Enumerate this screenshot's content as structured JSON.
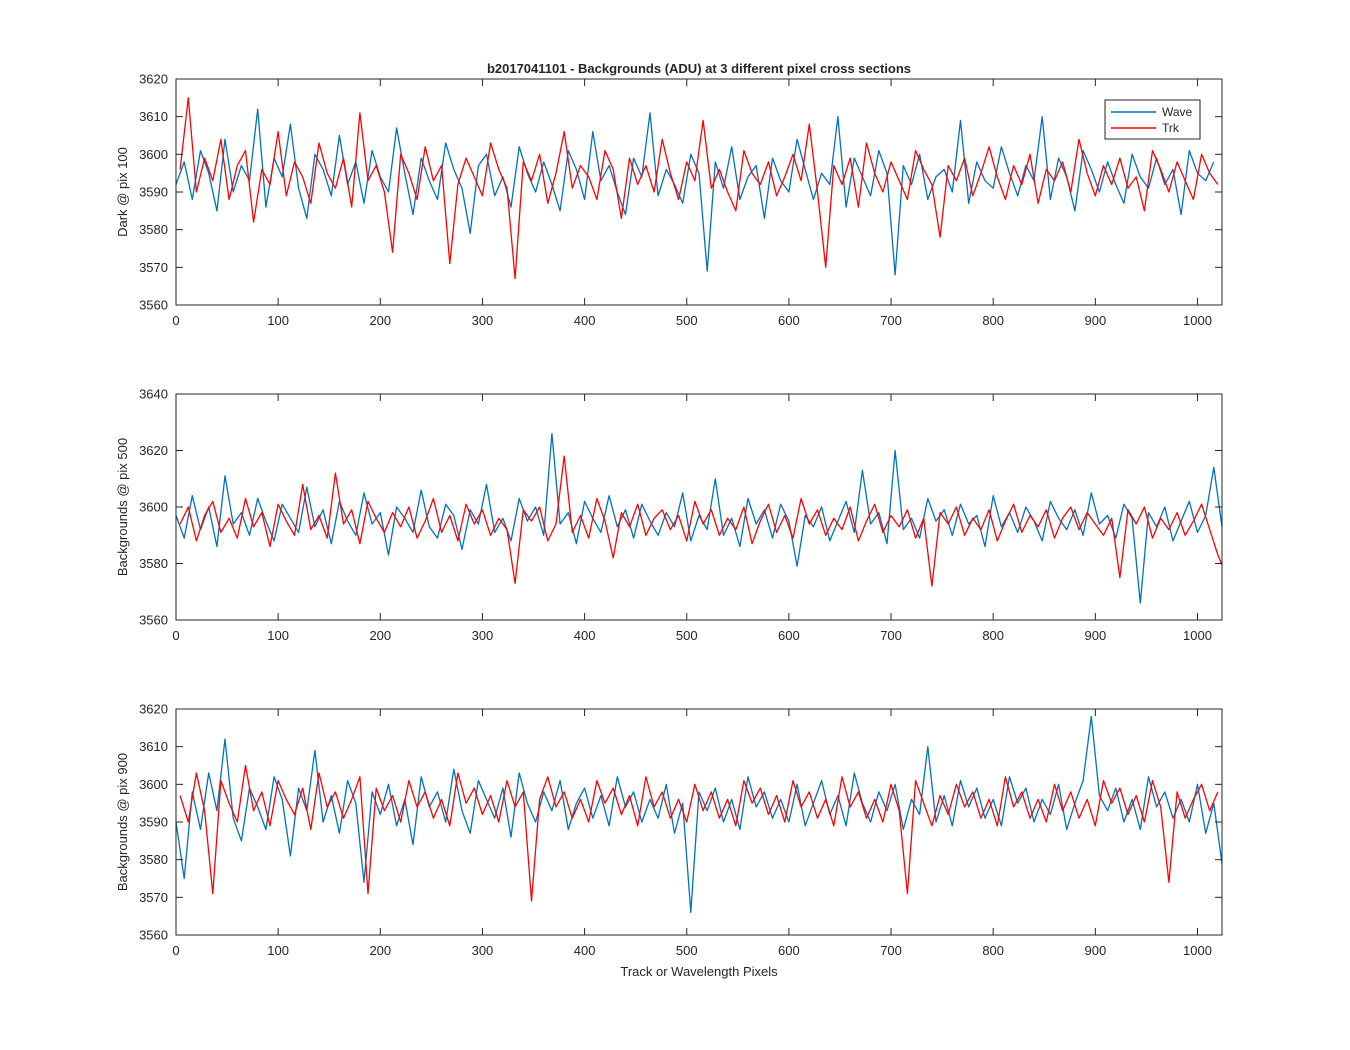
{
  "figure": {
    "title": "b2017041101 - Backgrounds (ADU) at 3 different pixel cross sections",
    "xlabel": "Track or Wavelength Pixels"
  },
  "colors": {
    "wave": "#0072BD",
    "trk": "#FF0000",
    "axis": "#262626",
    "background": "#FFFFFF"
  },
  "legend": {
    "placement": "top-right",
    "entries": [
      "Wave",
      "Trk"
    ]
  },
  "chart_data": [
    {
      "type": "line",
      "ylabel": "Dark @ pix 100",
      "xlim": [
        0,
        1024
      ],
      "ylim": [
        3560,
        3620
      ],
      "xticks": [
        0,
        100,
        200,
        300,
        400,
        500,
        600,
        700,
        800,
        900,
        1000
      ],
      "yticks": [
        3560,
        3570,
        3580,
        3590,
        3600,
        3610,
        3620
      ],
      "series": [
        {
          "name": "Wave",
          "color": "#0072BD",
          "x_start": 0,
          "x_step": 8,
          "values": [
            3592,
            3598,
            3588,
            3601,
            3595,
            3585,
            3604,
            3590,
            3597,
            3593,
            3612,
            3586,
            3599,
            3594,
            3608,
            3591,
            3583,
            3600,
            3596,
            3589,
            3605,
            3592,
            3598,
            3587,
            3601,
            3594,
            3590,
            3607,
            3595,
            3584,
            3599,
            3593,
            3588,
            3603,
            3596,
            3591,
            3579,
            3597,
            3600,
            3589,
            3594,
            3586,
            3602,
            3595,
            3590,
            3598,
            3592,
            3585,
            3601,
            3596,
            3588,
            3606,
            3593,
            3597,
            3590,
            3584,
            3599,
            3594,
            3611,
            3589,
            3596,
            3592,
            3587,
            3600,
            3595,
            3569,
            3598,
            3591,
            3602,
            3588,
            3594,
            3597,
            3583,
            3599,
            3593,
            3590,
            3604,
            3596,
            3588,
            3595,
            3592,
            3610,
            3586,
            3599,
            3594,
            3589,
            3601,
            3595,
            3568,
            3597,
            3592,
            3600,
            3588,
            3594,
            3596,
            3590,
            3609,
            3587,
            3598,
            3593,
            3591,
            3602,
            3595,
            3589,
            3597,
            3593,
            3610,
            3588,
            3599,
            3594,
            3585,
            3601,
            3596,
            3590,
            3598,
            3592,
            3587,
            3600,
            3594,
            3591,
            3599,
            3592,
            3596,
            3584,
            3601,
            3595,
            3593,
            3598
          ]
        },
        {
          "name": "Trk",
          "color": "#FF0000",
          "x_start": 4,
          "x_step": 8,
          "values": [
            3596,
            3615,
            3590,
            3599,
            3593,
            3604,
            3588,
            3597,
            3601,
            3582,
            3596,
            3592,
            3606,
            3589,
            3598,
            3594,
            3587,
            3603,
            3595,
            3591,
            3599,
            3586,
            3611,
            3593,
            3597,
            3590,
            3574,
            3600,
            3595,
            3588,
            3602,
            3593,
            3597,
            3571,
            3592,
            3599,
            3594,
            3589,
            3603,
            3596,
            3591,
            3567,
            3598,
            3593,
            3600,
            3587,
            3595,
            3606,
            3591,
            3597,
            3594,
            3588,
            3601,
            3596,
            3583,
            3599,
            3592,
            3597,
            3590,
            3604,
            3595,
            3588,
            3598,
            3593,
            3609,
            3591,
            3596,
            3590,
            3585,
            3601,
            3595,
            3592,
            3598,
            3589,
            3594,
            3600,
            3593,
            3608,
            3590,
            3570,
            3597,
            3592,
            3599,
            3586,
            3603,
            3595,
            3590,
            3598,
            3593,
            3588,
            3601,
            3596,
            3592,
            3578,
            3597,
            3593,
            3599,
            3589,
            3595,
            3602,
            3594,
            3588,
            3597,
            3592,
            3600,
            3587,
            3596,
            3593,
            3598,
            3590,
            3604,
            3595,
            3589,
            3597,
            3592,
            3599,
            3591,
            3594,
            3585,
            3601,
            3596,
            3590,
            3598,
            3593,
            3588,
            3600,
            3595,
            3592
          ]
        }
      ]
    },
    {
      "type": "line",
      "ylabel": "Backgrounds @ pix 500",
      "xlim": [
        0,
        1024
      ],
      "ylim": [
        3560,
        3640
      ],
      "xticks": [
        0,
        100,
        200,
        300,
        400,
        500,
        600,
        700,
        800,
        900,
        1000
      ],
      "yticks": [
        3560,
        3580,
        3600,
        3620,
        3640
      ],
      "series": [
        {
          "name": "Wave",
          "color": "#0072BD",
          "x_start": 0,
          "x_step": 8,
          "values": [
            3597,
            3589,
            3604,
            3592,
            3600,
            3586,
            3611,
            3594,
            3598,
            3590,
            3603,
            3595,
            3588,
            3601,
            3596,
            3591,
            3607,
            3593,
            3599,
            3587,
            3602,
            3595,
            3590,
            3605,
            3594,
            3598,
            3583,
            3600,
            3596,
            3591,
            3606,
            3593,
            3589,
            3601,
            3597,
            3585,
            3599,
            3594,
            3608,
            3591,
            3596,
            3588,
            3603,
            3595,
            3600,
            3590,
            3626,
            3594,
            3598,
            3587,
            3602,
            3596,
            3591,
            3604,
            3593,
            3599,
            3589,
            3601,
            3595,
            3590,
            3598,
            3593,
            3605,
            3588,
            3597,
            3592,
            3610,
            3590,
            3596,
            3586,
            3603,
            3594,
            3599,
            3589,
            3601,
            3595,
            3579,
            3597,
            3593,
            3600,
            3588,
            3595,
            3602,
            3591,
            3613,
            3594,
            3598,
            3587,
            3620,
            3592,
            3596,
            3589,
            3603,
            3595,
            3599,
            3590,
            3601,
            3594,
            3597,
            3586,
            3604,
            3593,
            3598,
            3591,
            3600,
            3595,
            3588,
            3602,
            3596,
            3592,
            3599,
            3590,
            3605,
            3594,
            3597,
            3589,
            3601,
            3596,
            3566,
            3598,
            3593,
            3600,
            3588,
            3595,
            3602,
            3591,
            3597,
            3614,
            3593
          ]
        },
        {
          "name": "Trk",
          "color": "#FF0000",
          "x_start": 4,
          "x_step": 8,
          "values": [
            3594,
            3600,
            3588,
            3597,
            3602,
            3591,
            3596,
            3589,
            3603,
            3593,
            3598,
            3586,
            3601,
            3595,
            3590,
            3608,
            3592,
            3597,
            3589,
            3612,
            3594,
            3599,
            3587,
            3602,
            3596,
            3591,
            3598,
            3593,
            3600,
            3589,
            3595,
            3603,
            3591,
            3597,
            3588,
            3601,
            3594,
            3599,
            3590,
            3596,
            3592,
            3573,
            3599,
            3595,
            3600,
            3588,
            3594,
            3618,
            3591,
            3597,
            3589,
            3603,
            3595,
            3582,
            3598,
            3593,
            3601,
            3590,
            3596,
            3599,
            3592,
            3597,
            3588,
            3602,
            3594,
            3599,
            3590,
            3596,
            3592,
            3600,
            3587,
            3595,
            3601,
            3591,
            3597,
            3589,
            3603,
            3594,
            3599,
            3590,
            3596,
            3592,
            3600,
            3588,
            3595,
            3601,
            3591,
            3597,
            3593,
            3599,
            3589,
            3596,
            3572,
            3598,
            3594,
            3600,
            3590,
            3596,
            3592,
            3599,
            3588,
            3595,
            3601,
            3591,
            3597,
            3593,
            3599,
            3589,
            3596,
            3600,
            3592,
            3598,
            3594,
            3590,
            3596,
            3575,
            3599,
            3594,
            3600,
            3589,
            3596,
            3592,
            3598,
            3590,
            3595,
            3601,
            3592,
            3583,
            3576
          ]
        }
      ]
    },
    {
      "type": "line",
      "ylabel": "Backgrounds @ pix 900",
      "xlim": [
        0,
        1024
      ],
      "ylim": [
        3560,
        3620
      ],
      "xticks": [
        0,
        100,
        200,
        300,
        400,
        500,
        600,
        700,
        800,
        900,
        1000
      ],
      "yticks": [
        3560,
        3570,
        3580,
        3590,
        3600,
        3610,
        3620
      ],
      "series": [
        {
          "name": "Wave",
          "color": "#0072BD",
          "x_start": 0,
          "x_step": 8,
          "values": [
            3590,
            3575,
            3598,
            3588,
            3603,
            3593,
            3612,
            3591,
            3585,
            3599,
            3594,
            3588,
            3602,
            3596,
            3581,
            3599,
            3593,
            3609,
            3590,
            3597,
            3587,
            3601,
            3595,
            3574,
            3598,
            3592,
            3600,
            3589,
            3596,
            3584,
            3602,
            3594,
            3598,
            3590,
            3604,
            3593,
            3587,
            3601,
            3596,
            3591,
            3599,
            3586,
            3603,
            3595,
            3590,
            3598,
            3593,
            3601,
            3588,
            3595,
            3599,
            3591,
            3597,
            3589,
            3602,
            3594,
            3598,
            3590,
            3596,
            3591,
            3600,
            3587,
            3595,
            3566,
            3598,
            3593,
            3599,
            3590,
            3596,
            3588,
            3602,
            3594,
            3598,
            3591,
            3596,
            3590,
            3600,
            3589,
            3595,
            3601,
            3592,
            3597,
            3589,
            3603,
            3595,
            3590,
            3598,
            3593,
            3600,
            3588,
            3596,
            3592,
            3610,
            3590,
            3597,
            3589,
            3601,
            3594,
            3599,
            3591,
            3596,
            3589,
            3602,
            3595,
            3599,
            3590,
            3596,
            3592,
            3600,
            3588,
            3595,
            3601,
            3618,
            3597,
            3593,
            3599,
            3590,
            3596,
            3588,
            3602,
            3594,
            3598,
            3591,
            3596,
            3590,
            3600,
            3587,
            3595,
            3579
          ]
        },
        {
          "name": "Trk",
          "color": "#FF0000",
          "x_start": 4,
          "x_step": 8,
          "values": [
            3597,
            3590,
            3603,
            3593,
            3571,
            3601,
            3595,
            3590,
            3605,
            3593,
            3598,
            3589,
            3601,
            3596,
            3592,
            3599,
            3588,
            3603,
            3594,
            3598,
            3591,
            3596,
            3602,
            3571,
            3599,
            3593,
            3597,
            3590,
            3601,
            3594,
            3598,
            3591,
            3596,
            3589,
            3603,
            3595,
            3599,
            3592,
            3597,
            3590,
            3601,
            3594,
            3598,
            3569,
            3596,
            3602,
            3594,
            3598,
            3591,
            3596,
            3590,
            3601,
            3595,
            3599,
            3592,
            3597,
            3589,
            3602,
            3594,
            3598,
            3591,
            3596,
            3590,
            3600,
            3593,
            3598,
            3591,
            3596,
            3589,
            3601,
            3595,
            3599,
            3592,
            3597,
            3590,
            3601,
            3594,
            3598,
            3591,
            3596,
            3589,
            3602,
            3594,
            3598,
            3591,
            3596,
            3590,
            3600,
            3593,
            3571,
            3601,
            3595,
            3589,
            3597,
            3592,
            3600,
            3594,
            3598,
            3591,
            3596,
            3589,
            3602,
            3594,
            3598,
            3591,
            3596,
            3590,
            3600,
            3593,
            3598,
            3591,
            3596,
            3589,
            3601,
            3595,
            3599,
            3592,
            3597,
            3590,
            3601,
            3594,
            3574,
            3598,
            3591,
            3596,
            3600,
            3593,
            3598
          ]
        }
      ]
    }
  ]
}
